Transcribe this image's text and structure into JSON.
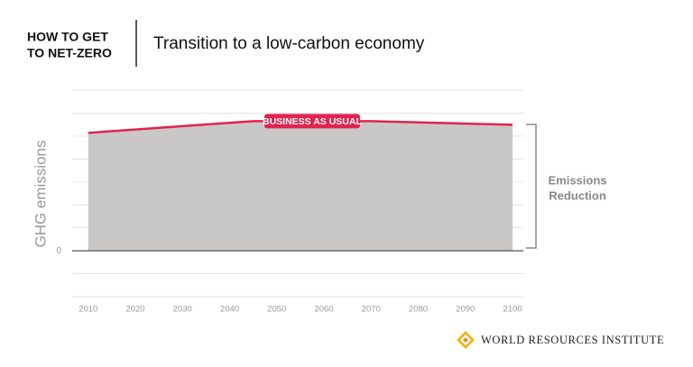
{
  "chart_data": {
    "type": "area",
    "kicker": [
      "HOW TO GET",
      "TO NET-ZERO"
    ],
    "title": "Transition to a low-carbon economy",
    "y_label": "GHG emissions",
    "x": [
      2010,
      2045,
      2070,
      2100
    ],
    "series": [
      {
        "name": "BUSINESS AS USUAL",
        "color": "#e2234f",
        "fill": "#c9c8c6",
        "values": [
          5.14,
          5.65,
          5.65,
          5.49
        ]
      }
    ],
    "xlim": [
      2006.6,
      2102.3
    ],
    "xticks": [
      2010,
      2020,
      2030,
      2040,
      2050,
      2060,
      2070,
      2080,
      2090,
      2100
    ],
    "ylim": [
      -2,
      7
    ],
    "yticks": [
      0
    ],
    "ygrid": [
      -2,
      -1,
      0,
      1,
      2,
      3,
      4,
      5,
      6,
      7
    ],
    "grid": true,
    "annotation": [
      "Emissions",
      "Reduction"
    ]
  },
  "footer": "WORLD RESOURCES INSTITUTE"
}
